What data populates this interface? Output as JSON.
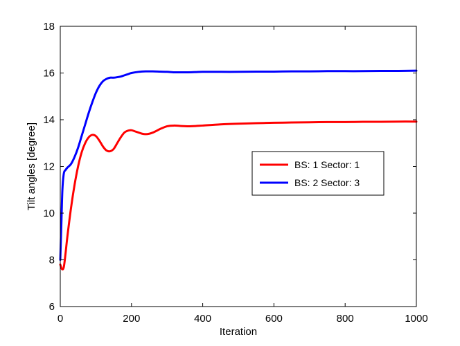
{
  "chart_data": {
    "type": "line",
    "title": "",
    "xlabel": "Iteration",
    "ylabel": "Tilt angles [degree]",
    "xlim": [
      0,
      1000
    ],
    "ylim": [
      6,
      18
    ],
    "xticks": [
      0,
      200,
      400,
      600,
      800,
      1000
    ],
    "yticks": [
      6,
      8,
      10,
      12,
      14,
      16,
      18
    ],
    "grid": false,
    "legend_position": "right-center",
    "series": [
      {
        "name": "BS:  1 Sector: 1",
        "color": "#ff0000",
        "x": [
          0,
          5,
          10,
          15,
          20,
          30,
          40,
          50,
          60,
          70,
          80,
          90,
          100,
          110,
          120,
          130,
          140,
          150,
          160,
          170,
          180,
          190,
          200,
          210,
          220,
          230,
          240,
          250,
          260,
          270,
          280,
          300,
          320,
          340,
          360,
          380,
          400,
          450,
          500,
          550,
          600,
          650,
          700,
          750,
          800,
          850,
          900,
          950,
          1000
        ],
        "y": [
          7.8,
          7.6,
          7.7,
          8.3,
          9.0,
          10.2,
          11.2,
          12.0,
          12.6,
          13.0,
          13.25,
          13.35,
          13.3,
          13.1,
          12.85,
          12.68,
          12.65,
          12.75,
          13.0,
          13.25,
          13.45,
          13.53,
          13.55,
          13.5,
          13.45,
          13.4,
          13.38,
          13.4,
          13.45,
          13.52,
          13.6,
          13.72,
          13.75,
          13.73,
          13.72,
          13.73,
          13.75,
          13.8,
          13.83,
          13.85,
          13.87,
          13.88,
          13.89,
          13.9,
          13.9,
          13.91,
          13.91,
          13.92,
          13.92
        ]
      },
      {
        "name": "BS:  2 Sector: 3",
        "color": "#0000ff",
        "x": [
          0,
          3,
          6,
          10,
          15,
          20,
          30,
          40,
          50,
          60,
          70,
          80,
          90,
          100,
          110,
          120,
          130,
          140,
          150,
          160,
          170,
          180,
          190,
          200,
          220,
          240,
          260,
          280,
          300,
          320,
          340,
          360,
          380,
          400,
          450,
          500,
          550,
          600,
          650,
          700,
          750,
          800,
          850,
          900,
          950,
          1000
        ],
        "y": [
          8.0,
          9.5,
          11.0,
          11.7,
          11.85,
          11.95,
          12.1,
          12.4,
          12.8,
          13.3,
          13.8,
          14.3,
          14.75,
          15.15,
          15.45,
          15.65,
          15.75,
          15.8,
          15.8,
          15.82,
          15.85,
          15.9,
          15.95,
          16.0,
          16.05,
          16.07,
          16.07,
          16.06,
          16.05,
          16.03,
          16.03,
          16.03,
          16.04,
          16.05,
          16.05,
          16.05,
          16.06,
          16.06,
          16.07,
          16.07,
          16.08,
          16.08,
          16.08,
          16.09,
          16.09,
          16.1
        ]
      }
    ]
  }
}
